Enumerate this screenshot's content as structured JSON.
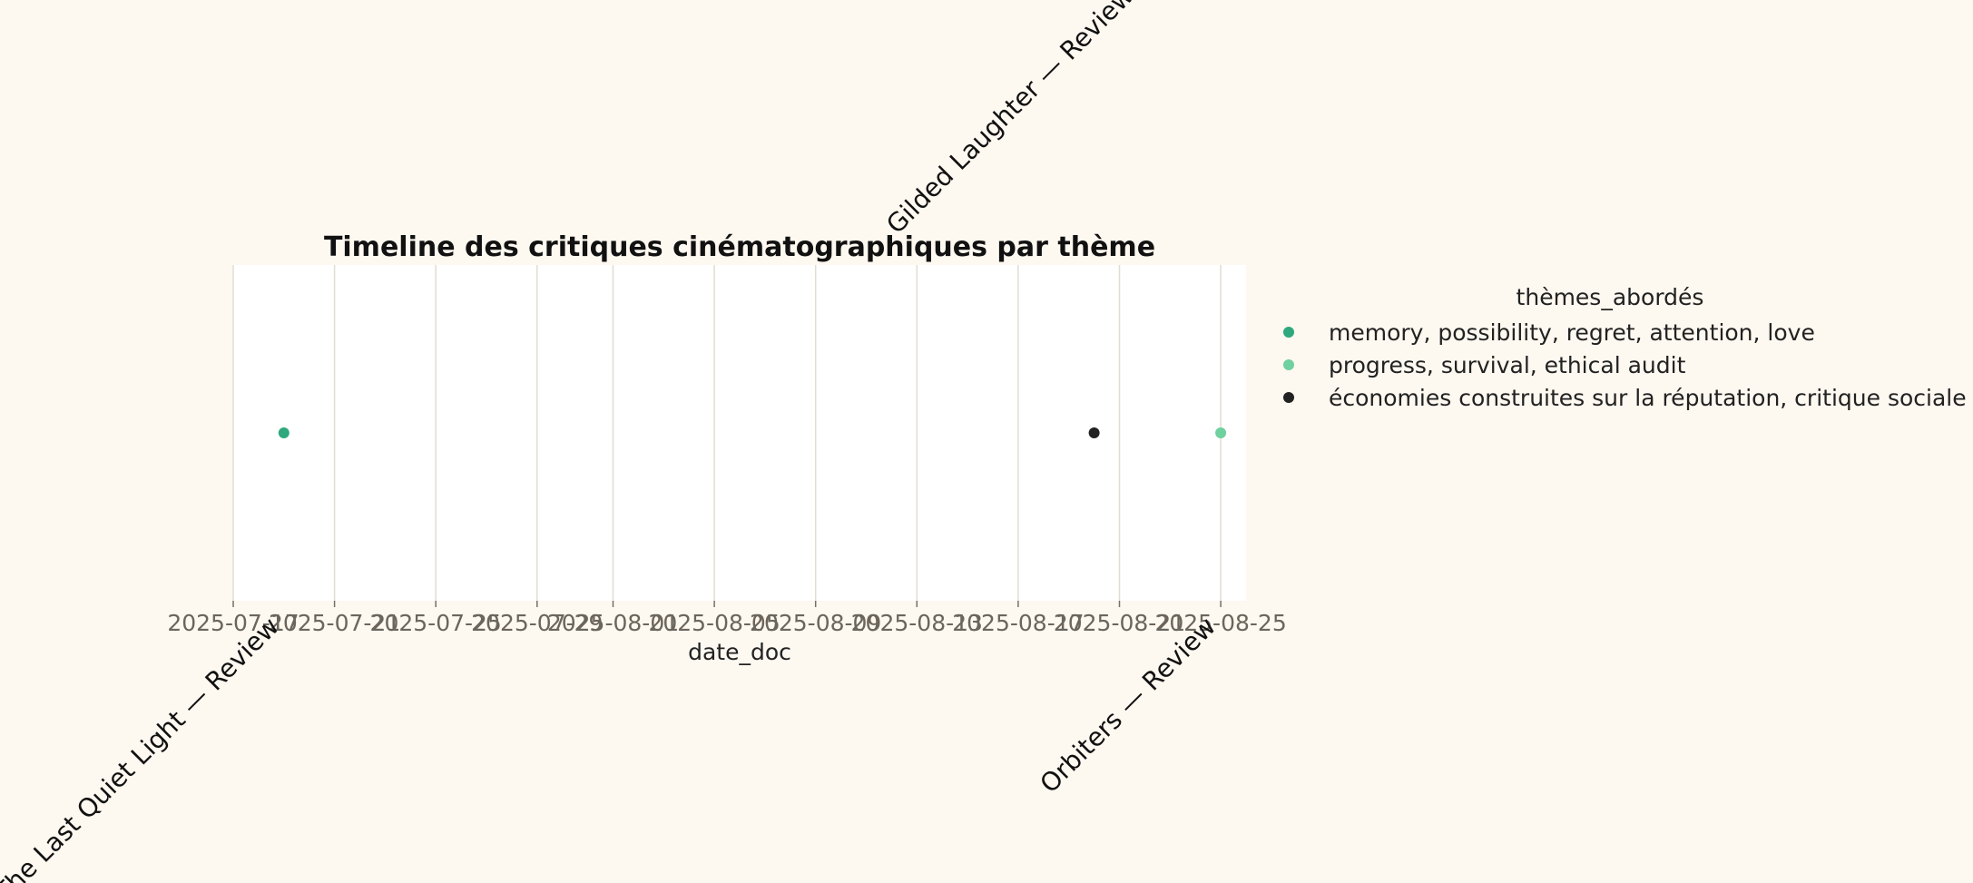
{
  "chart_data": {
    "type": "scatter",
    "title": "Timeline des critiques cinématographiques par thème",
    "xlabel": "date_doc",
    "ylabel": "",
    "x_ticks": [
      "2025-07-17",
      "2025-07-21",
      "2025-07-25",
      "2025-07-29",
      "2025-08-01",
      "2025-08-05",
      "2025-08-09",
      "2025-08-13",
      "2025-08-17",
      "2025-08-21",
      "2025-08-25"
    ],
    "xlim": [
      "2025-07-17",
      "2025-08-26"
    ],
    "grid": "x",
    "legend": {
      "title": "thèmes_abordés",
      "placement": "right",
      "entries": [
        {
          "label": "memory, possibility, regret, attention, love",
          "color": "#2ea87c"
        },
        {
          "label": "progress, survival, ethical audit",
          "color": "#6fd0a0"
        },
        {
          "label": "économies construites sur la réputation, critique sociale",
          "color": "#222222"
        }
      ]
    },
    "points": [
      {
        "x": "2025-07-19",
        "label": "The Last Quiet Light — Review",
        "theme": 0,
        "label_side": "below"
      },
      {
        "x": "2025-08-20",
        "label": "Gilded Laughter — Review",
        "theme": 2,
        "label_side": "above"
      },
      {
        "x": "2025-08-25",
        "label": "Orbiters — Review",
        "theme": 1,
        "label_side": "below"
      }
    ]
  }
}
